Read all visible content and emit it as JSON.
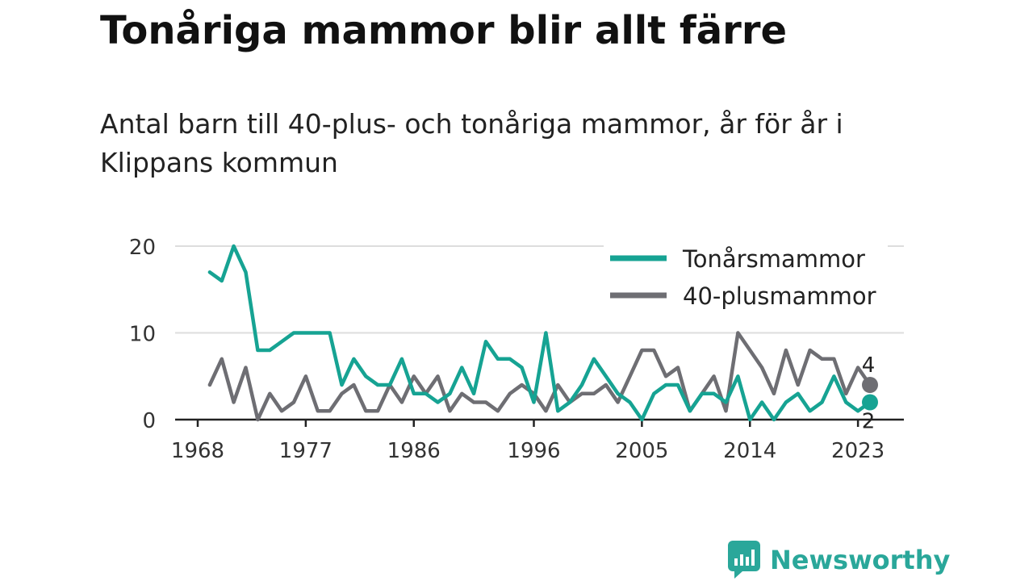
{
  "title": "Tonåriga mammor blir allt färre",
  "subtitle": "Antal barn till 40-plus- och tonåriga mammor, år för år i Klippans kommun",
  "brand": {
    "name": "Newsworthy",
    "color": "#2aa79a"
  },
  "chart_data": {
    "type": "line",
    "x": [
      1969,
      1970,
      1971,
      1972,
      1973,
      1974,
      1975,
      1976,
      1977,
      1978,
      1979,
      1980,
      1981,
      1982,
      1983,
      1984,
      1985,
      1986,
      1987,
      1988,
      1989,
      1990,
      1991,
      1992,
      1993,
      1994,
      1995,
      1996,
      1997,
      1998,
      1999,
      2000,
      2001,
      2002,
      2003,
      2004,
      2005,
      2006,
      2007,
      2008,
      2009,
      2010,
      2011,
      2012,
      2013,
      2014,
      2015,
      2016,
      2017,
      2018,
      2019,
      2020,
      2021,
      2022,
      2023,
      2024
    ],
    "series": [
      {
        "name": "Tonårsmammor",
        "color": "#16a393",
        "values": [
          17,
          16,
          20,
          17,
          8,
          8,
          9,
          10,
          10,
          10,
          10,
          4,
          7,
          5,
          4,
          4,
          7,
          3,
          3,
          2,
          3,
          6,
          3,
          9,
          7,
          7,
          6,
          2,
          10,
          1,
          2,
          4,
          7,
          5,
          3,
          2,
          0,
          3,
          4,
          4,
          1,
          3,
          3,
          2,
          5,
          0,
          2,
          0,
          2,
          3,
          1,
          2,
          5,
          2,
          1,
          2
        ],
        "end_label": "2"
      },
      {
        "name": "40-plusmammor",
        "color": "#6e6e73",
        "values": [
          4,
          7,
          2,
          6,
          0,
          3,
          1,
          2,
          5,
          1,
          1,
          3,
          4,
          1,
          1,
          4,
          2,
          5,
          3,
          5,
          1,
          3,
          2,
          2,
          1,
          3,
          4,
          3,
          1,
          4,
          2,
          3,
          3,
          4,
          2,
          5,
          8,
          8,
          5,
          6,
          1,
          3,
          5,
          1,
          10,
          8,
          6,
          3,
          8,
          4,
          8,
          7,
          7,
          3,
          6,
          4
        ],
        "end_label": "4"
      }
    ],
    "x_ticks": [
      1968,
      1977,
      1986,
      1996,
      2005,
      2014,
      2023
    ],
    "y_ticks": [
      0,
      10,
      20
    ],
    "xlim": [
      1968,
      2024
    ],
    "ylim": [
      0,
      20
    ],
    "grid": true,
    "legend_position": "top-right",
    "xlabel": "",
    "ylabel": ""
  }
}
